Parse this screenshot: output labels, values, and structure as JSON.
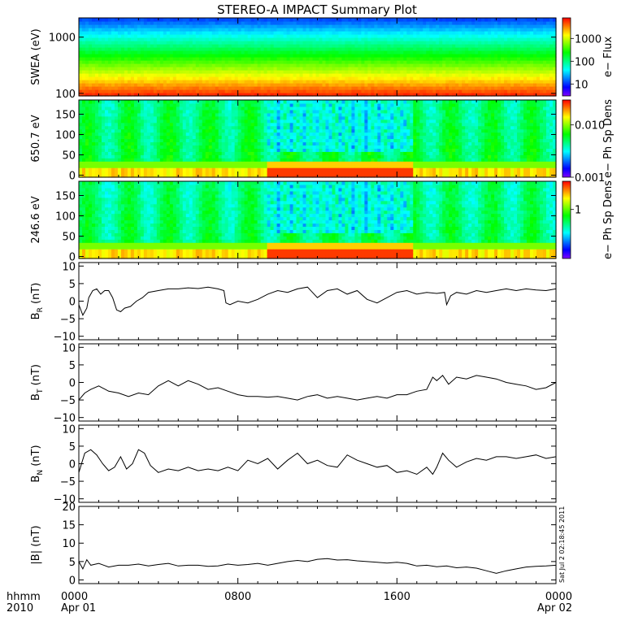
{
  "title": "STEREO-A IMPACT Summary Plot",
  "stamp": "Sat Jul  2 02:18:45 2011",
  "time_axis": {
    "corner_top": "hhmm",
    "corner_bottom": "2010",
    "ticks": [
      {
        "hour": 0,
        "label": "0000",
        "date": "Apr 01"
      },
      {
        "hour": 8,
        "label": "0800",
        "date": ""
      },
      {
        "hour": 16,
        "label": "1600",
        "date": ""
      },
      {
        "hour": 24,
        "label": "0000",
        "date": "Apr 02"
      }
    ],
    "range_hours": [
      0,
      24
    ]
  },
  "colors": {
    "rainbow": [
      "#7f00ff",
      "#0000ff",
      "#0080ff",
      "#00ffff",
      "#00ff80",
      "#00ff00",
      "#80ff00",
      "#ffff00",
      "#ff8000",
      "#ff0000"
    ]
  },
  "chart_data": [
    {
      "type": "heatmap",
      "id": "swea",
      "ylabel": "SWEA (eV)",
      "yscale": "log",
      "ylim": [
        90,
        2200
      ],
      "yticks": [
        {
          "v": 100,
          "label": "100"
        },
        {
          "v": 1000,
          "label": "1000"
        }
      ],
      "colorbar": {
        "label": "e− Flux",
        "scale": "log",
        "range": [
          3,
          8000
        ],
        "ticks": [
          {
            "v": 10,
            "label": "10"
          },
          {
            "v": 100,
            "label": "100"
          },
          {
            "v": 1000,
            "label": "1000"
          }
        ]
      },
      "profile": "energy decreasing flux: ~5000 at 100 eV, ~5 at 2000 eV"
    },
    {
      "type": "heatmap",
      "id": "pad650",
      "ylabel": "650.7 eV",
      "ylim": [
        -5,
        185
      ],
      "yticks": [
        {
          "v": 0,
          "label": "0"
        },
        {
          "v": 50,
          "label": "50"
        },
        {
          "v": 100,
          "label": "100"
        },
        {
          "v": 150,
          "label": "150"
        }
      ],
      "colorbar": {
        "label": "e− Ph Sp Dens",
        "scale": "log",
        "range": [
          0.001,
          0.03
        ],
        "ticks": [
          {
            "v": 0.001,
            "label": "0.001"
          },
          {
            "v": 0.01,
            "label": "0.010"
          }
        ]
      },
      "depletion_hours": [
        9.5,
        16.8
      ]
    },
    {
      "type": "heatmap",
      "id": "pad246",
      "ylabel": "246.6 eV",
      "ylim": [
        -5,
        185
      ],
      "yticks": [
        {
          "v": 0,
          "label": "0"
        },
        {
          "v": 50,
          "label": "50"
        },
        {
          "v": 100,
          "label": "100"
        },
        {
          "v": 150,
          "label": "150"
        }
      ],
      "colorbar": {
        "label": "e− Ph Sp Dens",
        "scale": "log",
        "range": [
          0.3,
          2.0
        ],
        "ticks": [
          {
            "v": 1,
            "label": "1"
          }
        ]
      },
      "depletion_hours": [
        9.5,
        16.8
      ]
    },
    {
      "type": "line",
      "id": "br",
      "ylabel_main": "B",
      "ylabel_sub": "R",
      "ylabel_unit": " (nT)",
      "ylim": [
        -11,
        11
      ],
      "yticks": [
        {
          "v": -10,
          "label": "−10"
        },
        {
          "v": -5,
          "label": "−5"
        },
        {
          "v": 0,
          "label": "0"
        },
        {
          "v": 5,
          "label": "5"
        },
        {
          "v": 10,
          "label": "10"
        }
      ],
      "x": [
        0,
        0.2,
        0.4,
        0.5,
        0.7,
        0.9,
        1.1,
        1.3,
        1.5,
        1.7,
        1.9,
        2.1,
        2.3,
        2.6,
        2.9,
        3.2,
        3.5,
        4,
        4.5,
        5,
        5.5,
        6,
        6.5,
        7,
        7.3,
        7.4,
        7.6,
        8,
        8.5,
        9,
        9.5,
        10,
        10.5,
        11,
        11.5,
        12,
        12.5,
        13,
        13.5,
        14,
        14.5,
        15,
        15.5,
        16,
        16.5,
        17,
        17.5,
        18,
        18.4,
        18.5,
        18.7,
        19,
        19.5,
        20,
        20.5,
        21,
        21.5,
        22,
        22.5,
        23,
        23.5,
        24
      ],
      "y": [
        -1,
        -4,
        -2,
        1,
        3,
        3.5,
        2,
        3,
        3,
        1,
        -2.5,
        -3,
        -2,
        -1.5,
        0,
        1,
        2.5,
        3,
        3.5,
        3.5,
        3.8,
        3.6,
        4,
        3.5,
        3,
        -0.5,
        -1,
        0,
        -0.5,
        0.5,
        2,
        3,
        2.5,
        3.5,
        4,
        1,
        3,
        3.5,
        2,
        3,
        0.5,
        -0.5,
        1,
        2.5,
        3,
        2,
        2.5,
        2.2,
        2.5,
        -1,
        1.5,
        2.5,
        2,
        3,
        2.5,
        3,
        3.5,
        3,
        3.5,
        3.2,
        3,
        3.5
      ]
    },
    {
      "type": "line",
      "id": "bt",
      "ylabel_main": "B",
      "ylabel_sub": "T",
      "ylabel_unit": " (nT)",
      "ylim": [
        -11,
        11
      ],
      "yticks": [
        {
          "v": -10,
          "label": "−10"
        },
        {
          "v": -5,
          "label": "−5"
        },
        {
          "v": 0,
          "label": "0"
        },
        {
          "v": 5,
          "label": "5"
        },
        {
          "v": 10,
          "label": "10"
        }
      ],
      "x": [
        0,
        0.3,
        0.6,
        1,
        1.5,
        2,
        2.5,
        3,
        3.5,
        4,
        4.5,
        5,
        5.5,
        6,
        6.5,
        7,
        7.5,
        8,
        8.5,
        9,
        9.5,
        10,
        10.5,
        11,
        11.5,
        12,
        12.5,
        13,
        13.5,
        14,
        14.5,
        15,
        15.5,
        16,
        16.5,
        17,
        17.5,
        17.8,
        18,
        18.3,
        18.6,
        19,
        19.5,
        20,
        20.5,
        21,
        21.5,
        22,
        22.5,
        23,
        23.5,
        24
      ],
      "y": [
        -5,
        -3,
        -2,
        -1,
        -2.5,
        -3,
        -4,
        -3,
        -3.5,
        -1,
        0.5,
        -1,
        0.5,
        -0.5,
        -2,
        -1.5,
        -2.5,
        -3.5,
        -4,
        -4,
        -4.2,
        -4,
        -4.5,
        -5,
        -4,
        -3.5,
        -4.5,
        -4,
        -4.5,
        -5,
        -4.5,
        -4,
        -4.5,
        -3.5,
        -3.5,
        -2.5,
        -2,
        1.5,
        0.5,
        2,
        -0.5,
        1.5,
        1,
        2,
        1.5,
        1,
        0,
        -0.5,
        -1,
        -2,
        -1.5,
        0
      ]
    },
    {
      "type": "line",
      "id": "bn",
      "ylabel_main": "B",
      "ylabel_sub": "N",
      "ylabel_unit": " (nT)",
      "ylim": [
        -11,
        11
      ],
      "yticks": [
        {
          "v": -10,
          "label": "−10"
        },
        {
          "v": -5,
          "label": "−5"
        },
        {
          "v": 0,
          "label": "0"
        },
        {
          "v": 5,
          "label": "5"
        },
        {
          "v": 10,
          "label": "10"
        }
      ],
      "x": [
        0,
        0.3,
        0.6,
        0.9,
        1.2,
        1.5,
        1.8,
        2.1,
        2.4,
        2.7,
        3,
        3.3,
        3.6,
        4,
        4.5,
        5,
        5.5,
        6,
        6.5,
        7,
        7.5,
        8,
        8.5,
        9,
        9.5,
        10,
        10.5,
        11,
        11.5,
        12,
        12.5,
        13,
        13.5,
        14,
        14.5,
        15,
        15.5,
        16,
        16.5,
        17,
        17.5,
        17.8,
        18,
        18.3,
        18.6,
        19,
        19.5,
        20,
        20.5,
        21,
        21.5,
        22,
        22.5,
        23,
        23.5,
        24
      ],
      "y": [
        -2.5,
        3,
        4,
        2.5,
        0,
        -2,
        -1,
        2,
        -1.5,
        0,
        4,
        3,
        -0.5,
        -2.5,
        -1.5,
        -2,
        -1,
        -2,
        -1.5,
        -2,
        -1,
        -2,
        1,
        0,
        1.5,
        -1.5,
        1,
        3,
        0,
        1,
        -0.5,
        -1,
        2.5,
        1,
        0,
        -1,
        -0.5,
        -2.5,
        -2,
        -3,
        -1,
        -3,
        -1,
        3,
        1,
        -1,
        0.5,
        1.5,
        1,
        2,
        2,
        1.5,
        2,
        2.5,
        1.5,
        2
      ]
    },
    {
      "type": "line",
      "id": "bmag",
      "ylabel_main": "|B|",
      "ylabel_sub": "",
      "ylabel_unit": " (nT)",
      "ylim": [
        -1,
        20
      ],
      "yticks": [
        {
          "v": 0,
          "label": "0"
        },
        {
          "v": 5,
          "label": "5"
        },
        {
          "v": 10,
          "label": "10"
        },
        {
          "v": 15,
          "label": "15"
        },
        {
          "v": 20,
          "label": "20"
        }
      ],
      "x": [
        0,
        0.2,
        0.4,
        0.6,
        1,
        1.5,
        2,
        2.5,
        3,
        3.5,
        4,
        4.5,
        5,
        5.5,
        6,
        6.5,
        7,
        7.5,
        8,
        8.5,
        9,
        9.5,
        10,
        10.5,
        11,
        11.5,
        12,
        12.5,
        13,
        13.5,
        14,
        14.5,
        15,
        15.5,
        16,
        16.5,
        17,
        17.5,
        18,
        18.5,
        19,
        19.5,
        20,
        20.5,
        21,
        21.5,
        22,
        22.5,
        23,
        23.5,
        24
      ],
      "y": [
        5,
        3,
        5.5,
        4,
        4.5,
        3.5,
        4,
        4,
        4.3,
        3.8,
        4.2,
        4.5,
        3.8,
        4,
        4,
        3.7,
        3.8,
        4.3,
        4,
        4.2,
        4.5,
        4,
        4.5,
        5,
        5.3,
        5,
        5.6,
        5.8,
        5.4,
        5.5,
        5.2,
        5,
        4.8,
        4.6,
        4.8,
        4.5,
        3.8,
        4,
        3.6,
        3.8,
        3.3,
        3.5,
        3.2,
        2.5,
        1.8,
        2.5,
        3,
        3.5,
        3.7,
        3.8,
        4
      ]
    }
  ]
}
